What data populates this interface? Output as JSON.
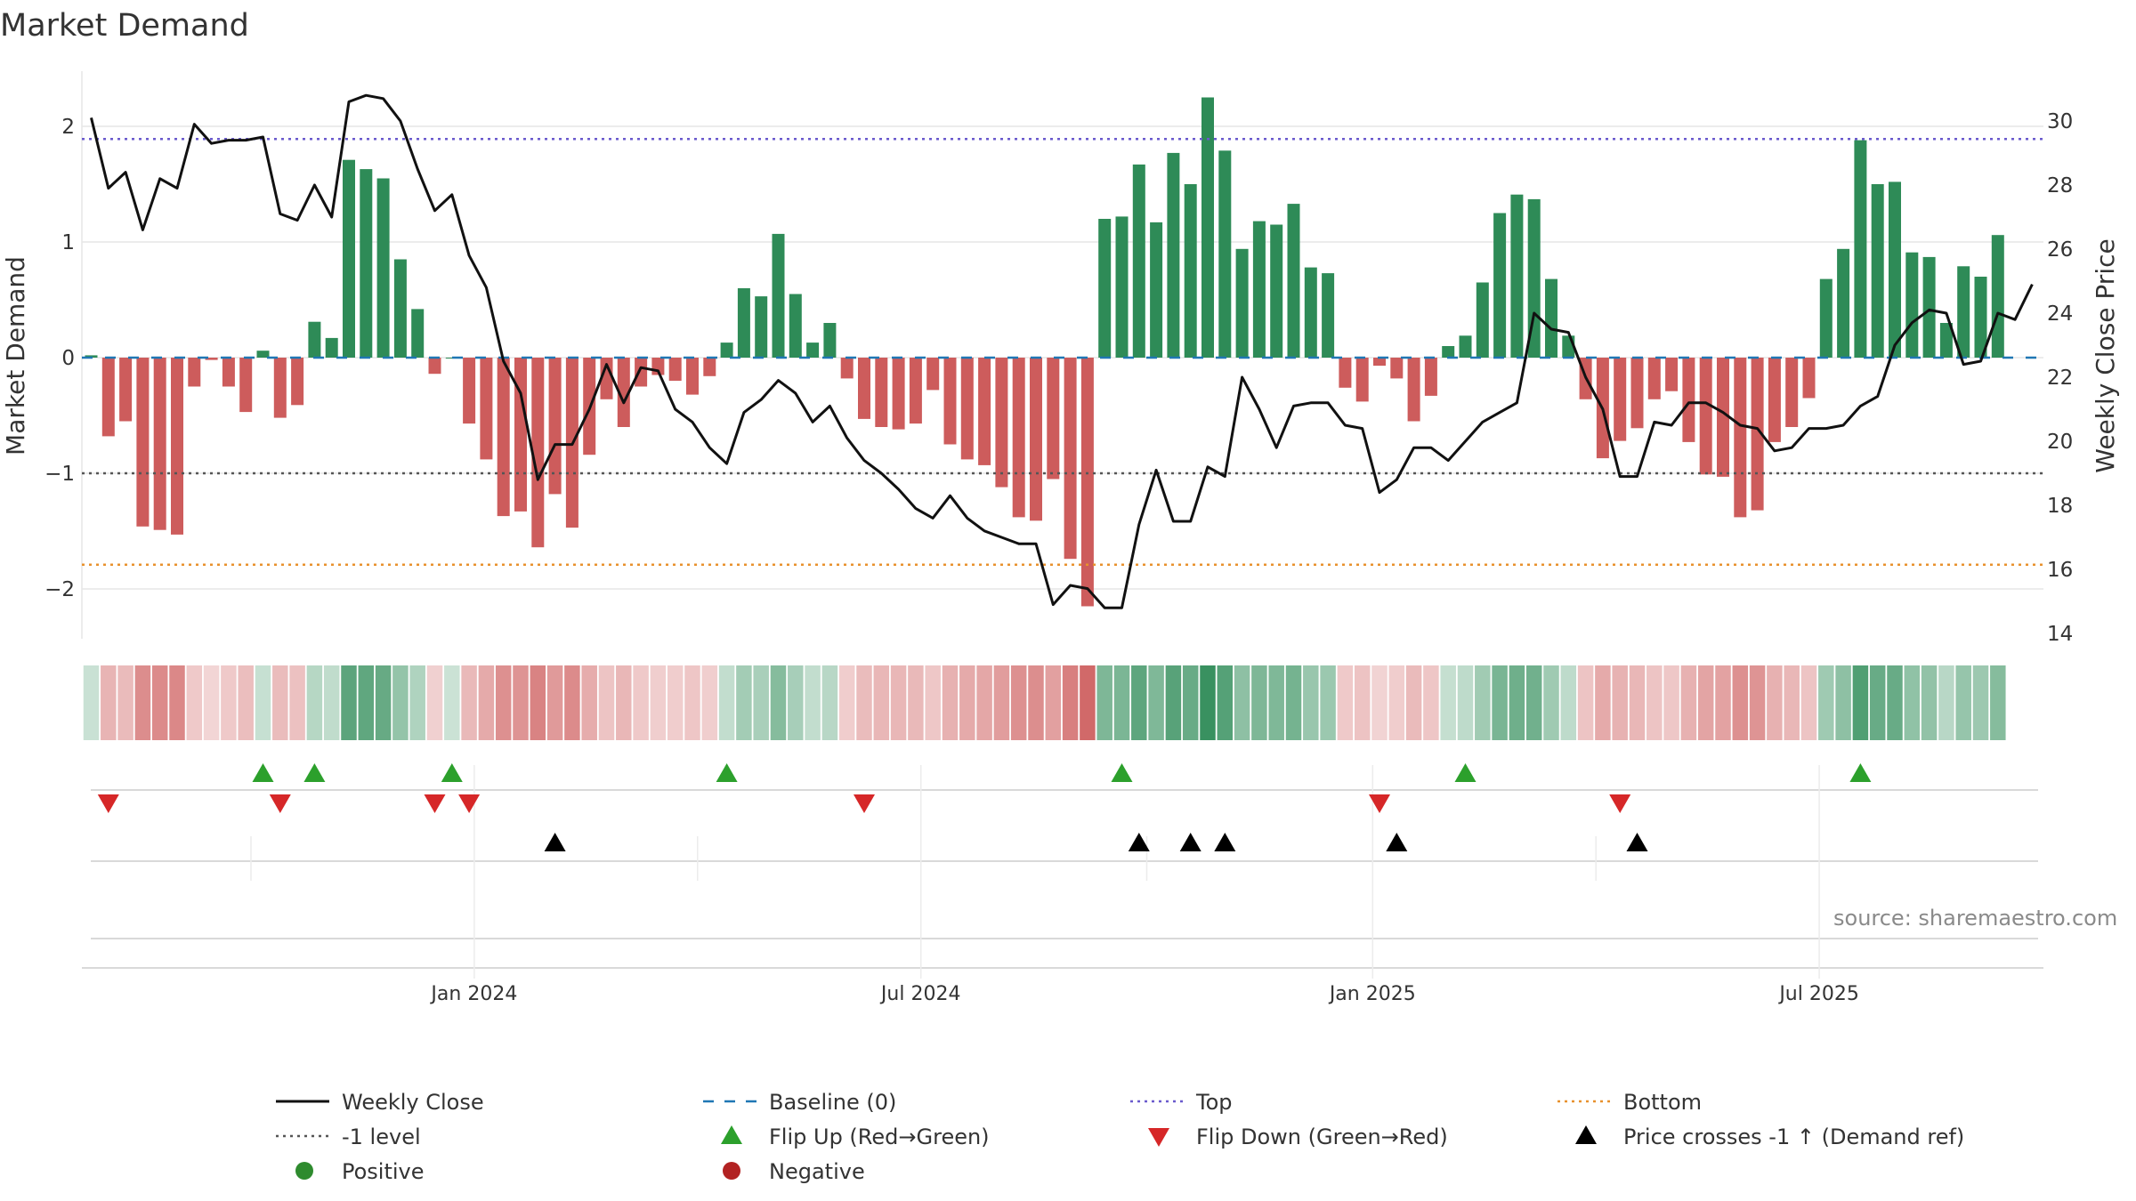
{
  "chart_data": {
    "type": "bar",
    "title": "Market Demand",
    "ylabel": "Market Demand",
    "y2label": "Weekly Close Price",
    "ylim": [
      -2.4,
      2.55
    ],
    "y2lim": [
      13.6,
      31.2
    ],
    "yticks": [
      "2",
      "1",
      "0",
      "−1",
      "−2"
    ],
    "y2ticks": [
      "30",
      "28",
      "26",
      "24",
      "22",
      "20",
      "18",
      "16",
      "14"
    ],
    "x_ticks": [
      "Jan 2024",
      "Jul 2024",
      "Jan 2025",
      "Jul 2025"
    ],
    "x_tick_week_index": [
      22.3,
      48.3,
      74.6,
      100.6
    ],
    "reference_lines": {
      "top": 1.89,
      "bottom": -1.79,
      "minus_one": -1.0,
      "baseline": 0
    },
    "colors": {
      "positive": "#2e8b57",
      "negative": "#cd5c5c",
      "price": "#000000",
      "top": "#6a5acd",
      "bottom": "#e8912d",
      "flip_up": "#2ca02c",
      "flip_down": "#d62728",
      "cross": "#000000",
      "neg_legend": "#b22222",
      "pos_legend": "#2e8b2e"
    },
    "series": [
      {
        "name": "Market Demand",
        "values": [
          0.02,
          -0.68,
          -0.55,
          -1.46,
          -1.49,
          -1.53,
          -0.25,
          -0.02,
          -0.25,
          -0.47,
          0.06,
          -0.52,
          -0.41,
          0.31,
          0.17,
          1.71,
          1.63,
          1.55,
          0.85,
          0.42,
          -0.14,
          0.0,
          -0.57,
          -0.88,
          -1.37,
          -1.33,
          -1.64,
          -1.18,
          -1.47,
          -0.84,
          -0.36,
          -0.6,
          -0.25,
          -0.15,
          -0.2,
          -0.32,
          -0.16,
          0.13,
          0.6,
          0.53,
          1.07,
          0.55,
          0.13,
          0.3,
          -0.18,
          -0.53,
          -0.6,
          -0.62,
          -0.57,
          -0.28,
          -0.75,
          -0.88,
          -0.93,
          -1.12,
          -1.38,
          -1.41,
          -1.05,
          -1.74,
          -2.15,
          1.2,
          1.22,
          1.67,
          1.17,
          1.77,
          1.5,
          2.25,
          1.79,
          0.94,
          1.18,
          1.15,
          1.33,
          0.78,
          0.73,
          -0.26,
          -0.38,
          -0.07,
          -0.18,
          -0.55,
          -0.33,
          0.1,
          0.19,
          0.65,
          1.25,
          1.41,
          1.37,
          0.68,
          0.19,
          -0.36,
          -0.87,
          -0.72,
          -0.61,
          -0.36,
          -0.29,
          -0.73,
          -1.01,
          -1.03,
          -1.38,
          -1.32,
          -0.73,
          -0.6,
          -0.35,
          0.68,
          0.94,
          1.88,
          1.5,
          1.52,
          0.91,
          0.87,
          0.3,
          0.79,
          0.7,
          1.06
        ]
      },
      {
        "name": "Weekly Close",
        "values": [
          30.1,
          27.9,
          28.4,
          26.6,
          28.2,
          27.9,
          29.9,
          29.3,
          29.4,
          29.4,
          29.5,
          27.1,
          26.9,
          28.0,
          27.0,
          30.6,
          30.8,
          30.7,
          30.0,
          28.5,
          27.2,
          27.7,
          25.8,
          24.8,
          22.5,
          21.5,
          18.8,
          19.9,
          19.9,
          21.0,
          22.4,
          21.2,
          22.3,
          22.2,
          21.0,
          20.6,
          19.8,
          19.3,
          20.9,
          21.3,
          21.9,
          21.5,
          20.6,
          21.1,
          20.1,
          19.4,
          19.0,
          18.5,
          17.9,
          17.6,
          18.3,
          17.6,
          17.2,
          17.0,
          16.8,
          16.8,
          14.9,
          15.5,
          15.4,
          14.8,
          14.8,
          17.4,
          19.1,
          17.5,
          17.5,
          19.2,
          18.9,
          22.0,
          21.0,
          19.8,
          21.1,
          21.2,
          21.2,
          20.5,
          20.4,
          18.4,
          18.8,
          19.8,
          19.8,
          19.4,
          20.0,
          20.6,
          20.9,
          21.2,
          24.0,
          23.5,
          23.4,
          22.0,
          21.0,
          18.9,
          18.9,
          20.6,
          20.5,
          21.2,
          21.2,
          20.9,
          20.5,
          20.4,
          19.7,
          19.8,
          20.4,
          20.4,
          20.5,
          21.1,
          21.4,
          23.0,
          23.7,
          24.1,
          24.0,
          22.4,
          22.5,
          24.0,
          23.8,
          24.9
        ]
      }
    ],
    "flip_up_week_index": [
      10,
      13,
      21,
      37,
      60,
      80,
      103
    ],
    "flip_down_week_index": [
      1,
      11,
      20,
      22,
      45,
      75,
      89
    ],
    "cross_week_index": [
      27,
      61,
      64,
      66,
      76,
      90
    ],
    "legend": [
      {
        "label": "Weekly Close",
        "kind": "line",
        "color": "#111111"
      },
      {
        "label": "Baseline (0)",
        "kind": "dash",
        "color": "#1f77b4"
      },
      {
        "label": "Top",
        "kind": "dot",
        "color": "#6a5acd"
      },
      {
        "label": "Bottom",
        "kind": "dot",
        "color": "#e8912d"
      },
      {
        "label": "-1 level",
        "kind": "dot",
        "color": "#555555"
      },
      {
        "label": "Flip Up (Red→Green)",
        "kind": "tri-up",
        "color": "#2ca02c"
      },
      {
        "label": "Flip Down (Green→Red)",
        "kind": "tri-down",
        "color": "#d62728"
      },
      {
        "label": "Price crosses -1 ↑ (Demand ref)",
        "kind": "tri-up",
        "color": "#000000"
      },
      {
        "label": "Positive",
        "kind": "circle",
        "color": "#2e8b2e"
      },
      {
        "label": "Negative",
        "kind": "circle",
        "color": "#b22222"
      }
    ],
    "source": "source: sharemaestro.com"
  }
}
